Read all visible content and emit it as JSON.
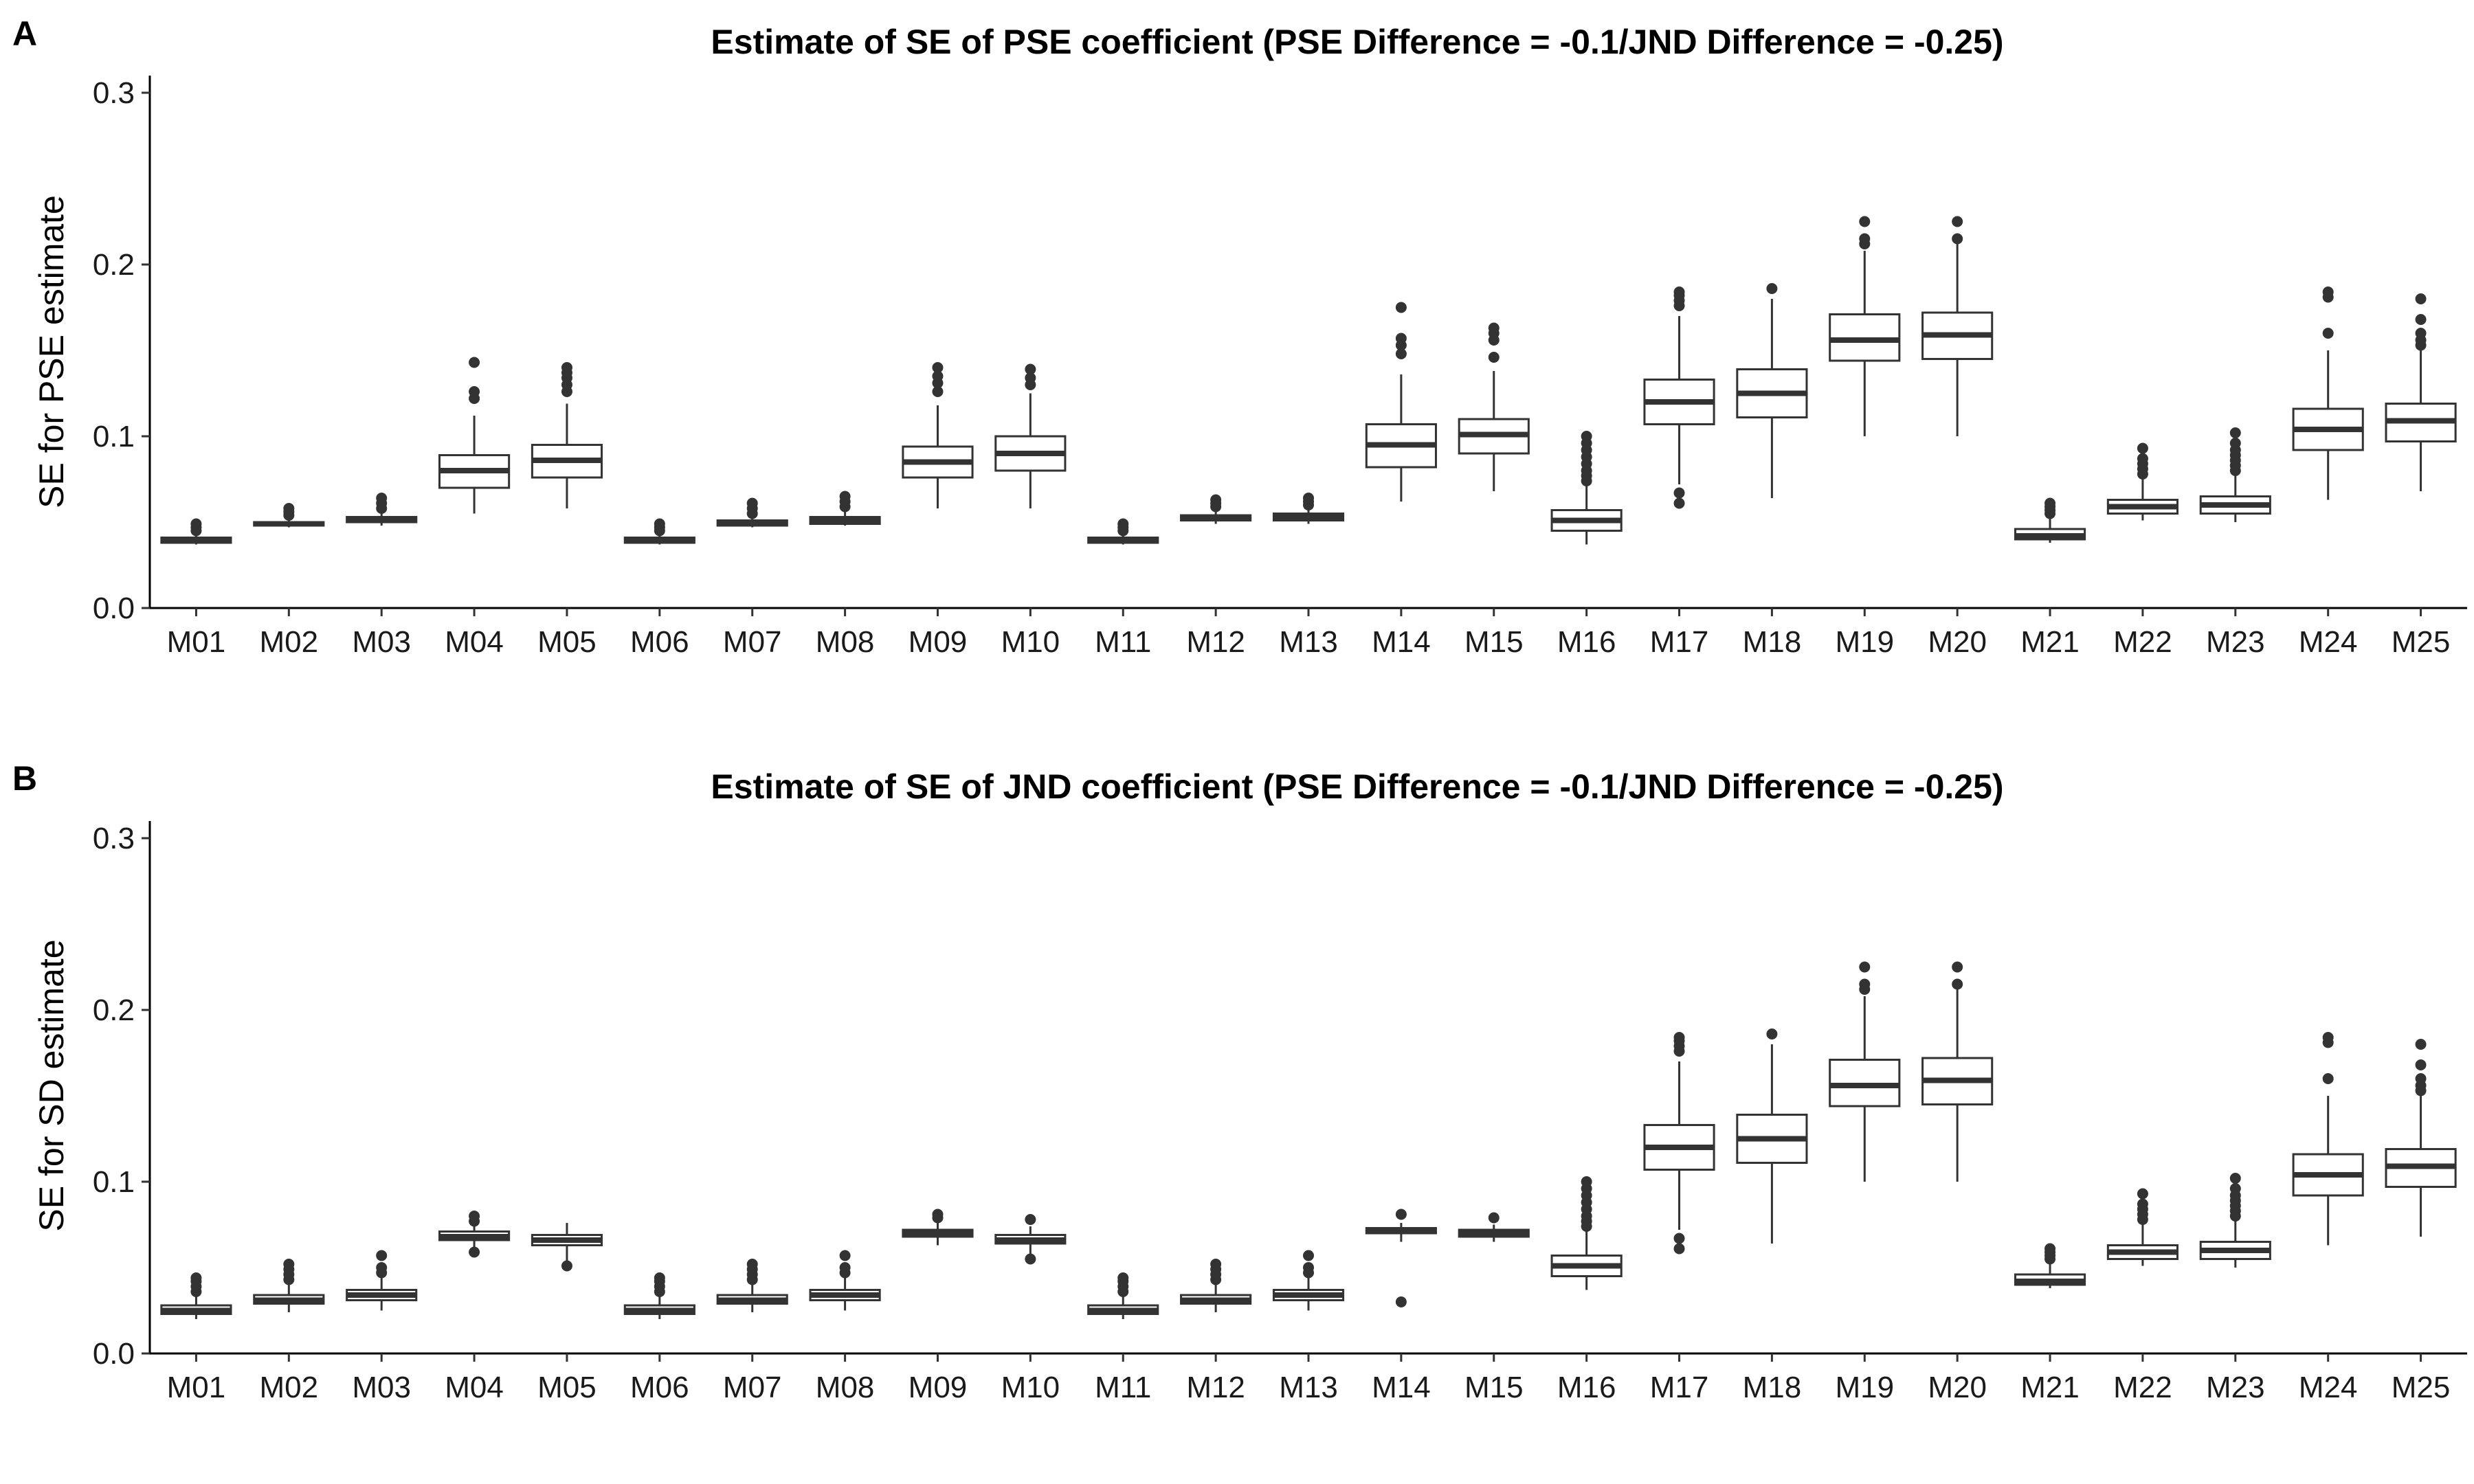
{
  "chart_data": [
    {
      "type": "boxplot",
      "panel_label": "A",
      "title": "Estimate of SE of PSE coefficient (PSE Difference = -0.1/JND Difference = -0.25)",
      "xlabel": "",
      "ylabel": "SE for PSE estimate",
      "ylim": [
        0.0,
        0.31
      ],
      "y_ticks": [
        "0.0",
        "0.1",
        "0.2",
        "0.3"
      ],
      "legend": "none",
      "grid": false,
      "categories": [
        "M01",
        "M02",
        "M03",
        "M04",
        "M05",
        "M06",
        "M07",
        "M08",
        "M09",
        "M10",
        "M11",
        "M12",
        "M13",
        "M14",
        "M15",
        "M16",
        "M17",
        "M18",
        "M19",
        "M20",
        "M21",
        "M22",
        "M23",
        "M24",
        "M25"
      ],
      "boxes": [
        {
          "min": 0.037,
          "q1": 0.038,
          "median": 0.039,
          "q3": 0.041,
          "max": 0.043,
          "outliers": [
            0.045,
            0.047,
            0.049
          ]
        },
        {
          "min": 0.047,
          "q1": 0.048,
          "median": 0.049,
          "q3": 0.05,
          "max": 0.052,
          "outliers": [
            0.054,
            0.056,
            0.058
          ]
        },
        {
          "min": 0.048,
          "q1": 0.05,
          "median": 0.051,
          "q3": 0.053,
          "max": 0.056,
          "outliers": [
            0.058,
            0.061,
            0.064
          ]
        },
        {
          "min": 0.055,
          "q1": 0.07,
          "median": 0.08,
          "q3": 0.089,
          "max": 0.112,
          "outliers": [
            0.122,
            0.126,
            0.143
          ]
        },
        {
          "min": 0.058,
          "q1": 0.076,
          "median": 0.086,
          "q3": 0.095,
          "max": 0.119,
          "outliers": [
            0.126,
            0.13,
            0.134,
            0.137,
            0.14
          ]
        },
        {
          "min": 0.037,
          "q1": 0.038,
          "median": 0.039,
          "q3": 0.041,
          "max": 0.043,
          "outliers": [
            0.045,
            0.047,
            0.049
          ]
        },
        {
          "min": 0.047,
          "q1": 0.048,
          "median": 0.049,
          "q3": 0.051,
          "max": 0.053,
          "outliers": [
            0.055,
            0.058,
            0.061
          ]
        },
        {
          "min": 0.048,
          "q1": 0.049,
          "median": 0.051,
          "q3": 0.053,
          "max": 0.056,
          "outliers": [
            0.059,
            0.062,
            0.065
          ]
        },
        {
          "min": 0.058,
          "q1": 0.076,
          "median": 0.085,
          "q3": 0.094,
          "max": 0.118,
          "outliers": [
            0.126,
            0.131,
            0.135,
            0.14
          ]
        },
        {
          "min": 0.058,
          "q1": 0.08,
          "median": 0.09,
          "q3": 0.1,
          "max": 0.125,
          "outliers": [
            0.13,
            0.134,
            0.139
          ]
        },
        {
          "min": 0.037,
          "q1": 0.038,
          "median": 0.039,
          "q3": 0.041,
          "max": 0.043,
          "outliers": [
            0.045,
            0.047,
            0.049
          ]
        },
        {
          "min": 0.049,
          "q1": 0.051,
          "median": 0.052,
          "q3": 0.054,
          "max": 0.057,
          "outliers": [
            0.059,
            0.061,
            0.063
          ]
        },
        {
          "min": 0.049,
          "q1": 0.051,
          "median": 0.053,
          "q3": 0.055,
          "max": 0.058,
          "outliers": [
            0.06,
            0.062,
            0.064
          ]
        },
        {
          "min": 0.062,
          "q1": 0.082,
          "median": 0.095,
          "q3": 0.107,
          "max": 0.136,
          "outliers": [
            0.148,
            0.153,
            0.157,
            0.175
          ]
        },
        {
          "min": 0.068,
          "q1": 0.09,
          "median": 0.101,
          "q3": 0.11,
          "max": 0.138,
          "outliers": [
            0.146,
            0.156,
            0.16,
            0.163
          ]
        },
        {
          "min": 0.037,
          "q1": 0.045,
          "median": 0.051,
          "q3": 0.057,
          "max": 0.071,
          "outliers": [
            0.074,
            0.077,
            0.08,
            0.084,
            0.088,
            0.092,
            0.096,
            0.1
          ]
        },
        {
          "min": 0.072,
          "q1": 0.107,
          "median": 0.12,
          "q3": 0.133,
          "max": 0.17,
          "outliers": [
            0.061,
            0.067,
            0.176,
            0.179,
            0.182,
            0.184
          ]
        },
        {
          "min": 0.064,
          "q1": 0.111,
          "median": 0.125,
          "q3": 0.139,
          "max": 0.18,
          "outliers": [
            0.186
          ]
        },
        {
          "min": 0.1,
          "q1": 0.144,
          "median": 0.156,
          "q3": 0.171,
          "max": 0.208,
          "outliers": [
            0.212,
            0.215,
            0.225
          ]
        },
        {
          "min": 0.1,
          "q1": 0.145,
          "median": 0.159,
          "q3": 0.172,
          "max": 0.212,
          "outliers": [
            0.215,
            0.225
          ]
        },
        {
          "min": 0.038,
          "q1": 0.04,
          "median": 0.042,
          "q3": 0.046,
          "max": 0.052,
          "outliers": [
            0.055,
            0.057,
            0.059,
            0.061
          ]
        },
        {
          "min": 0.051,
          "q1": 0.055,
          "median": 0.059,
          "q3": 0.063,
          "max": 0.075,
          "outliers": [
            0.078,
            0.081,
            0.084,
            0.087,
            0.093
          ]
        },
        {
          "min": 0.05,
          "q1": 0.055,
          "median": 0.06,
          "q3": 0.065,
          "max": 0.077,
          "outliers": [
            0.08,
            0.083,
            0.086,
            0.089,
            0.092,
            0.096,
            0.102
          ]
        },
        {
          "min": 0.063,
          "q1": 0.092,
          "median": 0.104,
          "q3": 0.116,
          "max": 0.15,
          "outliers": [
            0.16,
            0.181,
            0.184
          ]
        },
        {
          "min": 0.068,
          "q1": 0.097,
          "median": 0.109,
          "q3": 0.119,
          "max": 0.15,
          "outliers": [
            0.153,
            0.156,
            0.16,
            0.168,
            0.18
          ]
        }
      ]
    },
    {
      "type": "boxplot",
      "panel_label": "B",
      "title": "Estimate of SE of JND coefficient (PSE Difference = -0.1/JND Difference = -0.25)",
      "xlabel": "",
      "ylabel": "SE for SD estimate",
      "ylim": [
        0.0,
        0.31
      ],
      "y_ticks": [
        "0.0",
        "0.1",
        "0.2",
        "0.3"
      ],
      "legend": "none",
      "grid": false,
      "categories": [
        "M01",
        "M02",
        "M03",
        "M04",
        "M05",
        "M06",
        "M07",
        "M08",
        "M09",
        "M10",
        "M11",
        "M12",
        "M13",
        "M14",
        "M15",
        "M16",
        "M17",
        "M18",
        "M19",
        "M20",
        "M21",
        "M22",
        "M23",
        "M24",
        "M25"
      ],
      "boxes": [
        {
          "min": 0.02,
          "q1": 0.023,
          "median": 0.025,
          "q3": 0.028,
          "max": 0.033,
          "outliers": [
            0.036,
            0.039,
            0.042,
            0.044
          ]
        },
        {
          "min": 0.024,
          "q1": 0.029,
          "median": 0.031,
          "q3": 0.034,
          "max": 0.04,
          "outliers": [
            0.043,
            0.046,
            0.049,
            0.052
          ]
        },
        {
          "min": 0.025,
          "q1": 0.031,
          "median": 0.034,
          "q3": 0.037,
          "max": 0.044,
          "outliers": [
            0.047,
            0.05,
            0.057
          ]
        },
        {
          "min": 0.062,
          "q1": 0.066,
          "median": 0.068,
          "q3": 0.071,
          "max": 0.074,
          "outliers": [
            0.059,
            0.077,
            0.08
          ]
        },
        {
          "min": 0.054,
          "q1": 0.063,
          "median": 0.066,
          "q3": 0.069,
          "max": 0.076,
          "outliers": [
            0.051
          ]
        },
        {
          "min": 0.02,
          "q1": 0.023,
          "median": 0.025,
          "q3": 0.028,
          "max": 0.033,
          "outliers": [
            0.036,
            0.039,
            0.042,
            0.044
          ]
        },
        {
          "min": 0.024,
          "q1": 0.029,
          "median": 0.031,
          "q3": 0.034,
          "max": 0.04,
          "outliers": [
            0.043,
            0.046,
            0.049,
            0.052
          ]
        },
        {
          "min": 0.025,
          "q1": 0.031,
          "median": 0.034,
          "q3": 0.037,
          "max": 0.044,
          "outliers": [
            0.047,
            0.05,
            0.057
          ]
        },
        {
          "min": 0.063,
          "q1": 0.068,
          "median": 0.07,
          "q3": 0.072,
          "max": 0.076,
          "outliers": [
            0.079,
            0.081
          ]
        },
        {
          "min": 0.058,
          "q1": 0.064,
          "median": 0.066,
          "q3": 0.069,
          "max": 0.074,
          "outliers": [
            0.055,
            0.078
          ]
        },
        {
          "min": 0.02,
          "q1": 0.023,
          "median": 0.025,
          "q3": 0.028,
          "max": 0.033,
          "outliers": [
            0.036,
            0.039,
            0.042,
            0.044
          ]
        },
        {
          "min": 0.024,
          "q1": 0.029,
          "median": 0.031,
          "q3": 0.034,
          "max": 0.04,
          "outliers": [
            0.043,
            0.046,
            0.049,
            0.052
          ]
        },
        {
          "min": 0.025,
          "q1": 0.031,
          "median": 0.034,
          "q3": 0.037,
          "max": 0.044,
          "outliers": [
            0.047,
            0.05,
            0.057
          ]
        },
        {
          "min": 0.065,
          "q1": 0.07,
          "median": 0.071,
          "q3": 0.073,
          "max": 0.076,
          "outliers": [
            0.03,
            0.081
          ]
        },
        {
          "min": 0.065,
          "q1": 0.068,
          "median": 0.07,
          "q3": 0.072,
          "max": 0.075,
          "outliers": [
            0.079
          ]
        },
        {
          "min": 0.037,
          "q1": 0.045,
          "median": 0.051,
          "q3": 0.057,
          "max": 0.071,
          "outliers": [
            0.074,
            0.077,
            0.08,
            0.084,
            0.088,
            0.092,
            0.096,
            0.1
          ]
        },
        {
          "min": 0.072,
          "q1": 0.107,
          "median": 0.12,
          "q3": 0.133,
          "max": 0.17,
          "outliers": [
            0.061,
            0.067,
            0.176,
            0.179,
            0.182,
            0.184
          ]
        },
        {
          "min": 0.064,
          "q1": 0.111,
          "median": 0.125,
          "q3": 0.139,
          "max": 0.18,
          "outliers": [
            0.186
          ]
        },
        {
          "min": 0.1,
          "q1": 0.144,
          "median": 0.156,
          "q3": 0.171,
          "max": 0.208,
          "outliers": [
            0.212,
            0.215,
            0.225
          ]
        },
        {
          "min": 0.1,
          "q1": 0.145,
          "median": 0.159,
          "q3": 0.172,
          "max": 0.212,
          "outliers": [
            0.215,
            0.225
          ]
        },
        {
          "min": 0.038,
          "q1": 0.04,
          "median": 0.042,
          "q3": 0.046,
          "max": 0.052,
          "outliers": [
            0.055,
            0.057,
            0.059,
            0.061
          ]
        },
        {
          "min": 0.051,
          "q1": 0.055,
          "median": 0.059,
          "q3": 0.063,
          "max": 0.075,
          "outliers": [
            0.078,
            0.081,
            0.084,
            0.087,
            0.093
          ]
        },
        {
          "min": 0.05,
          "q1": 0.055,
          "median": 0.06,
          "q3": 0.065,
          "max": 0.077,
          "outliers": [
            0.08,
            0.083,
            0.086,
            0.089,
            0.092,
            0.096,
            0.102
          ]
        },
        {
          "min": 0.063,
          "q1": 0.092,
          "median": 0.104,
          "q3": 0.116,
          "max": 0.15,
          "outliers": [
            0.16,
            0.181,
            0.184
          ]
        },
        {
          "min": 0.068,
          "q1": 0.097,
          "median": 0.109,
          "q3": 0.119,
          "max": 0.15,
          "outliers": [
            0.153,
            0.156,
            0.16,
            0.168,
            0.18
          ]
        }
      ]
    }
  ]
}
